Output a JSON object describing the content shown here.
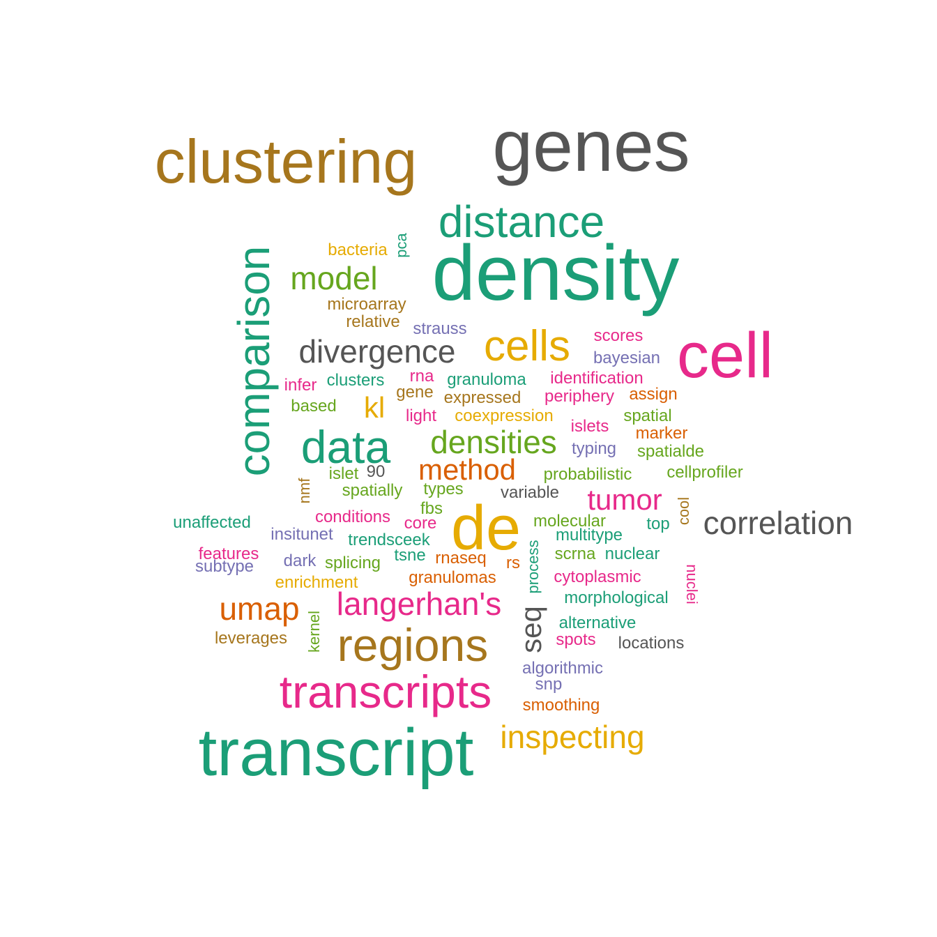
{
  "palette": {
    "teal": "#1b9e77",
    "orange": "#d95f02",
    "purple": "#7570b3",
    "magenta": "#e7298a",
    "green": "#66a61e",
    "mustard": "#e6ab02",
    "brown": "#a6761d",
    "gray": "#666666"
  },
  "words": [
    {
      "text": "genes",
      "color": "#555555"
    },
    {
      "text": "clustering",
      "color": "#a6761d"
    },
    {
      "text": "distance",
      "color": "#1b9e77"
    },
    {
      "text": "density",
      "color": "#1b9e77"
    },
    {
      "text": "comparison",
      "color": "#1b9e77"
    },
    {
      "text": "cell",
      "color": "#e7298a"
    },
    {
      "text": "bacteria",
      "color": "#e6ab02"
    },
    {
      "text": "pca",
      "color": "#1b9e77"
    },
    {
      "text": "model",
      "color": "#66a61e"
    },
    {
      "text": "microarray",
      "color": "#a6761d"
    },
    {
      "text": "relative",
      "color": "#a6761d"
    },
    {
      "text": "strauss",
      "color": "#7570b3"
    },
    {
      "text": "scores",
      "color": "#e7298a"
    },
    {
      "text": "bayesian",
      "color": "#7570b3"
    },
    {
      "text": "divergence",
      "color": "#555555"
    },
    {
      "text": "cells",
      "color": "#e6ab02"
    },
    {
      "text": "infer",
      "color": "#e7298a"
    },
    {
      "text": "clusters",
      "color": "#1b9e77"
    },
    {
      "text": "rna",
      "color": "#e7298a"
    },
    {
      "text": "granuloma",
      "color": "#1b9e77"
    },
    {
      "text": "identification",
      "color": "#e7298a"
    },
    {
      "text": "based",
      "color": "#66a61e"
    },
    {
      "text": "gene",
      "color": "#a6761d"
    },
    {
      "text": "expressed",
      "color": "#a6761d"
    },
    {
      "text": "periphery",
      "color": "#e7298a"
    },
    {
      "text": "assign",
      "color": "#d95f02"
    },
    {
      "text": "kl",
      "color": "#e6ab02"
    },
    {
      "text": "light",
      "color": "#e7298a"
    },
    {
      "text": "coexpression",
      "color": "#e6ab02"
    },
    {
      "text": "spatial",
      "color": "#66a61e"
    },
    {
      "text": "islets",
      "color": "#e7298a"
    },
    {
      "text": "data",
      "color": "#1b9e77"
    },
    {
      "text": "densities",
      "color": "#66a61e"
    },
    {
      "text": "marker",
      "color": "#d95f02"
    },
    {
      "text": "typing",
      "color": "#7570b3"
    },
    {
      "text": "spatialde",
      "color": "#66a61e"
    },
    {
      "text": "method",
      "color": "#d95f02"
    },
    {
      "text": "90",
      "color": "#555555"
    },
    {
      "text": "islet",
      "color": "#66a61e"
    },
    {
      "text": "probabilistic",
      "color": "#66a61e"
    },
    {
      "text": "cellprofiler",
      "color": "#66a61e"
    },
    {
      "text": "nmf",
      "color": "#a6761d"
    },
    {
      "text": "spatially",
      "color": "#66a61e"
    },
    {
      "text": "types",
      "color": "#66a61e"
    },
    {
      "text": "variable",
      "color": "#555555"
    },
    {
      "text": "tumor",
      "color": "#e7298a"
    },
    {
      "text": "cool",
      "color": "#a6761d"
    },
    {
      "text": "fbs",
      "color": "#66a61e"
    },
    {
      "text": "unaffected",
      "color": "#1b9e77"
    },
    {
      "text": "conditions",
      "color": "#e7298a"
    },
    {
      "text": "core",
      "color": "#e7298a"
    },
    {
      "text": "de",
      "color": "#e6ab02"
    },
    {
      "text": "molecular",
      "color": "#66a61e"
    },
    {
      "text": "top",
      "color": "#1b9e77"
    },
    {
      "text": "correlation",
      "color": "#555555"
    },
    {
      "text": "insitunet",
      "color": "#7570b3"
    },
    {
      "text": "trendsceek",
      "color": "#1b9e77"
    },
    {
      "text": "multitype",
      "color": "#1b9e77"
    },
    {
      "text": "features",
      "color": "#e7298a"
    },
    {
      "text": "subtype",
      "color": "#7570b3"
    },
    {
      "text": "dark",
      "color": "#7570b3"
    },
    {
      "text": "splicing",
      "color": "#66a61e"
    },
    {
      "text": "tsne",
      "color": "#1b9e77"
    },
    {
      "text": "rnaseq",
      "color": "#d95f02"
    },
    {
      "text": "rs",
      "color": "#d95f02"
    },
    {
      "text": "process",
      "color": "#1b9e77"
    },
    {
      "text": "scrna",
      "color": "#66a61e"
    },
    {
      "text": "nuclear",
      "color": "#1b9e77"
    },
    {
      "text": "enrichment",
      "color": "#e6ab02"
    },
    {
      "text": "granulomas",
      "color": "#d95f02"
    },
    {
      "text": "cytoplasmic",
      "color": "#e7298a"
    },
    {
      "text": "nuclei",
      "color": "#e7298a"
    },
    {
      "text": "umap",
      "color": "#d95f02"
    },
    {
      "text": "langerhan's",
      "color": "#e7298a"
    },
    {
      "text": "seq",
      "color": "#555555"
    },
    {
      "text": "morphological",
      "color": "#1b9e77"
    },
    {
      "text": "kernel",
      "color": "#66a61e"
    },
    {
      "text": "alternative",
      "color": "#1b9e77"
    },
    {
      "text": "leverages",
      "color": "#a6761d"
    },
    {
      "text": "regions",
      "color": "#a6761d"
    },
    {
      "text": "spots",
      "color": "#e7298a"
    },
    {
      "text": "locations",
      "color": "#555555"
    },
    {
      "text": "algorithmic",
      "color": "#7570b3"
    },
    {
      "text": "transcripts",
      "color": "#e7298a"
    },
    {
      "text": "snp",
      "color": "#7570b3"
    },
    {
      "text": "smoothing",
      "color": "#d95f02"
    },
    {
      "text": "inspecting",
      "color": "#e6ab02"
    },
    {
      "text": "transcript",
      "color": "#1b9e77"
    }
  ]
}
